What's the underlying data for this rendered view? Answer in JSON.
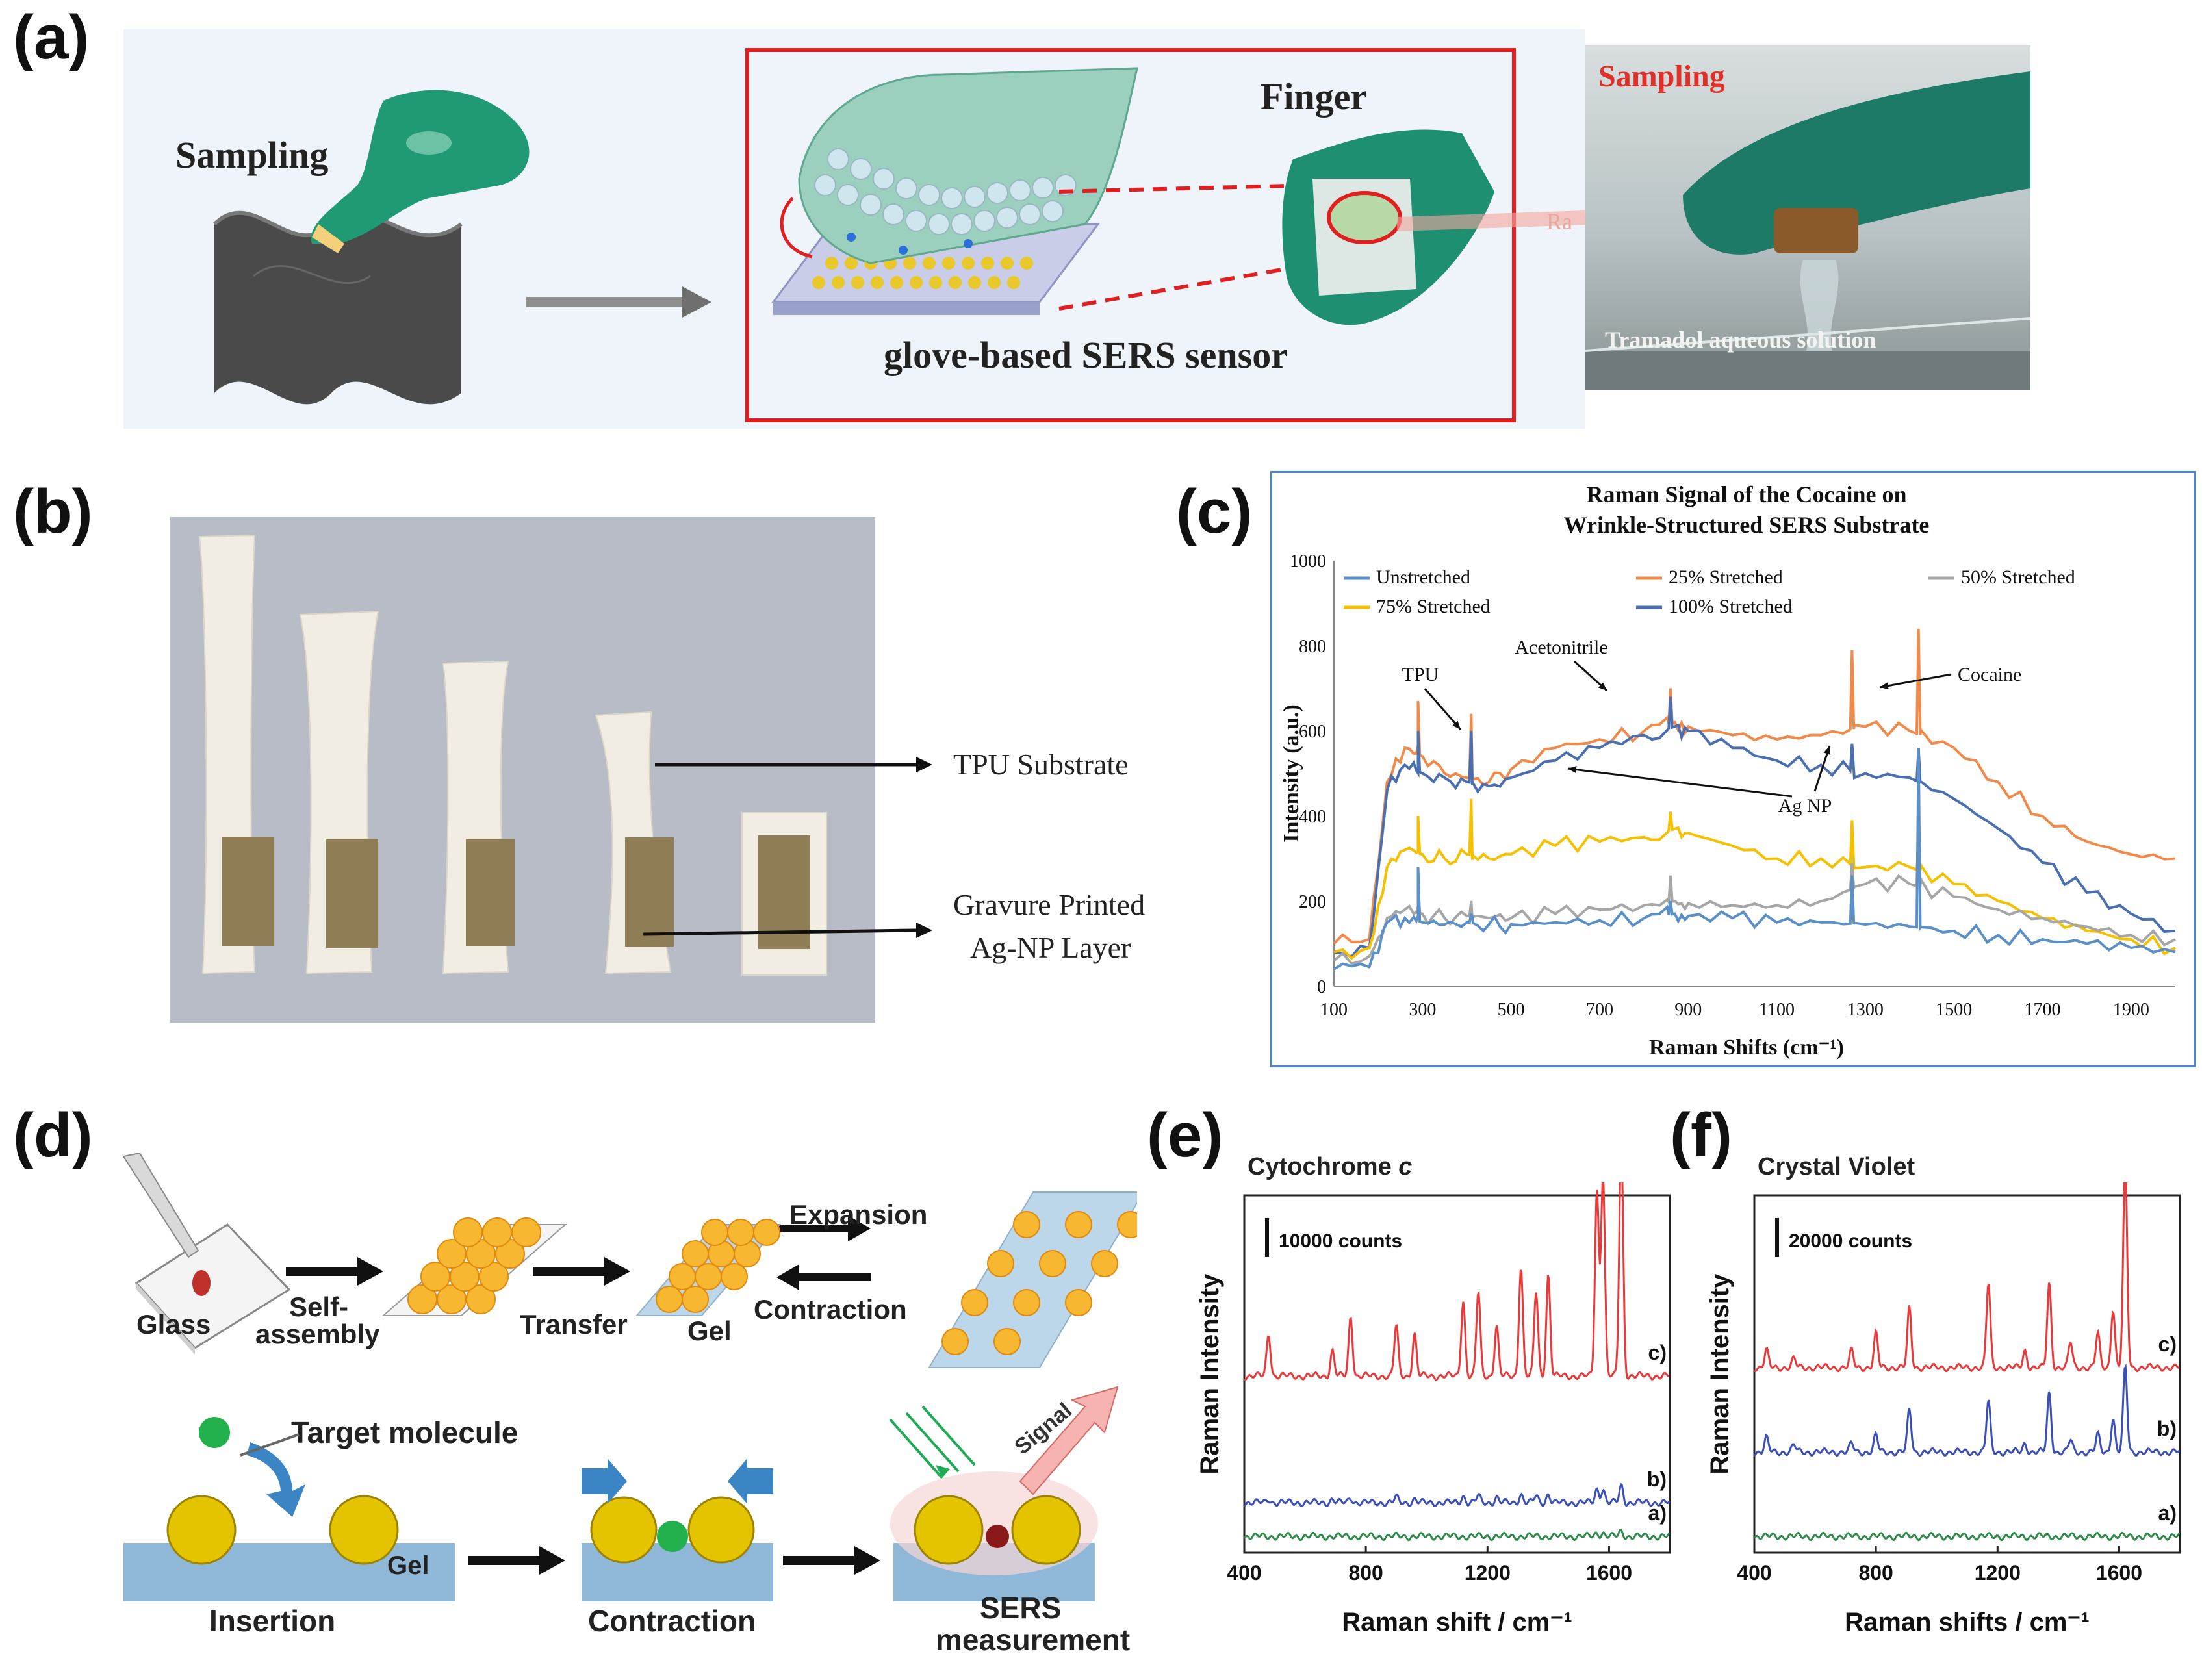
{
  "panels": {
    "a": "(a)",
    "b": "(b)",
    "c": "(c)",
    "d": "(d)",
    "e": "(e)",
    "f": "(f)"
  },
  "panel_a": {
    "sampling_label": "Sampling",
    "finger_label": "Finger",
    "sensor_label": "glove-based SERS sensor",
    "photo_sampling_label": "Sampling",
    "photo_caption": "Tramadol aqueous solution",
    "laser_text": "Ra"
  },
  "panel_b": {
    "tpu_label": "TPU Substrate",
    "agnp_label_line1": "Gravure Printed",
    "agnp_label_line2": "Ag-NP Layer"
  },
  "panel_d": {
    "glass": "Glass",
    "self_assembly_1": "Self-",
    "self_assembly_2": "assembly",
    "transfer": "Transfer",
    "gel": "Gel",
    "expansion": "Expansion",
    "contraction": "Contraction",
    "target_molecule": "Target molecule",
    "gel_small": "Gel",
    "insertion": "Insertion",
    "contraction_step": "Contraction",
    "sers_1": "SERS",
    "sers_2": "measurement",
    "signal": "Signal"
  },
  "colors": {
    "unstretched": "#5b8fc7",
    "s25": "#f08a4b",
    "s50": "#a6a6a6",
    "s75": "#f5c000",
    "s100": "#4a6fb0",
    "spectrum_c": "#e83a3a",
    "spectrum_b": "#3a4fb8",
    "spectrum_a": "#2e8b4a"
  },
  "chart_data": [
    {
      "id": "c",
      "type": "line",
      "title": "Raman Signal of the Cocaine on",
      "subtitle": "Wrinkle-Structured SERS Substrate",
      "xlabel": "Raman Shifts (cm⁻¹)",
      "ylabel": "Intensity (a.u.)",
      "xlim": [
        100,
        2000
      ],
      "ylim": [
        0,
        1000
      ],
      "xticks": [
        "100",
        "300",
        "500",
        "700",
        "900",
        "1100",
        "1300",
        "1500",
        "1700",
        "1900"
      ],
      "yticks": [
        "0",
        "200",
        "400",
        "600",
        "800",
        "1000"
      ],
      "legend": [
        "Unstretched",
        "25% Stretched",
        "50% Stretched",
        "75% Stretched",
        "100% Stretched"
      ],
      "annotations": [
        "TPU",
        "Acetonitrile",
        "Cocaine",
        "Ag NP"
      ],
      "x": [
        100,
        180,
        220,
        260,
        300,
        350,
        400,
        450,
        500,
        600,
        700,
        800,
        870,
        900,
        1000,
        1100,
        1200,
        1300,
        1400,
        1500,
        1600,
        1700,
        1800,
        1900,
        2000
      ],
      "series": [
        {
          "name": "Unstretched",
          "values": [
            40,
            45,
            150,
            160,
            150,
            145,
            150,
            145,
            145,
            150,
            155,
            160,
            170,
            165,
            160,
            150,
            150,
            145,
            140,
            130,
            120,
            110,
            100,
            90,
            80
          ]
        },
        {
          "name": "25% Stretched",
          "values": [
            100,
            110,
            480,
            560,
            540,
            500,
            490,
            480,
            510,
            560,
            580,
            600,
            620,
            610,
            590,
            580,
            590,
            610,
            600,
            560,
            480,
            400,
            340,
            310,
            300
          ]
        },
        {
          "name": "50% Stretched",
          "values": [
            60,
            70,
            160,
            180,
            170,
            160,
            165,
            160,
            160,
            170,
            180,
            190,
            200,
            195,
            190,
            190,
            200,
            240,
            240,
            210,
            180,
            160,
            140,
            120,
            110
          ]
        },
        {
          "name": "75% Stretched",
          "values": [
            80,
            90,
            280,
            320,
            310,
            300,
            310,
            300,
            310,
            330,
            340,
            350,
            370,
            360,
            330,
            300,
            300,
            280,
            280,
            240,
            200,
            160,
            130,
            110,
            90
          ]
        },
        {
          "name": "100% Stretched",
          "values": [
            80,
            90,
            460,
            520,
            500,
            490,
            480,
            470,
            490,
            530,
            560,
            590,
            610,
            600,
            560,
            530,
            520,
            500,
            490,
            440,
            370,
            290,
            220,
            170,
            130
          ]
        }
      ],
      "peaks": [
        {
          "x": 290,
          "values": [
            280,
            670,
            230,
            400,
            600
          ]
        },
        {
          "x": 410,
          "values": [
            170,
            640,
            200,
            440,
            600
          ]
        },
        {
          "x": 860,
          "values": [
            200,
            700,
            260,
            410,
            680
          ]
        },
        {
          "x": 1270,
          "values": [
            260,
            790,
            290,
            390,
            570
          ]
        },
        {
          "x": 1420,
          "values": [
            560,
            840,
            410,
            330,
            560
          ]
        }
      ]
    },
    {
      "id": "e",
      "type": "line",
      "title": "Cytochrome c",
      "title_main": "Cytochrome ",
      "title_italic": "c",
      "scale_bar": "10000 counts",
      "xlabel": "Raman shift / cm⁻¹",
      "ylabel": "Raman Intensity",
      "xlim": [
        400,
        1800
      ],
      "xticks": [
        "400",
        "800",
        "1200",
        "1600"
      ],
      "trace_labels": [
        "c)",
        "b)",
        "a)"
      ],
      "peaks_x": [
        480,
        690,
        750,
        900,
        960,
        1120,
        1170,
        1230,
        1310,
        1360,
        1400,
        1560,
        1580,
        1640
      ],
      "series": [
        {
          "name": "c)",
          "baseline": 9.5,
          "peaks": [
            2.5,
            1.5,
            3.5,
            3,
            2.5,
            4.5,
            5,
            3,
            6.5,
            5,
            6,
            11,
            12,
            14
          ]
        },
        {
          "name": "b)",
          "baseline": 2.0,
          "peaks": [
            0.2,
            0.2,
            0.3,
            0.3,
            0.2,
            0.4,
            0.4,
            0.3,
            0.5,
            0.4,
            0.5,
            0.8,
            0.8,
            1.0
          ]
        },
        {
          "name": "a)",
          "baseline": 0.0,
          "peaks": [
            0,
            0,
            0,
            0,
            0,
            0,
            0,
            0,
            0,
            0,
            0,
            0.2,
            0.2,
            0.3
          ]
        }
      ]
    },
    {
      "id": "f",
      "type": "line",
      "title": "Crystal Violet",
      "scale_bar": "20000 counts",
      "xlabel": "Raman shifts / cm⁻¹",
      "ylabel": "Raman Intensity",
      "xlim": [
        400,
        1800
      ],
      "xticks": [
        "400",
        "800",
        "1200",
        "1600"
      ],
      "trace_labels": [
        "c)",
        "b)",
        "a)"
      ],
      "peaks_x": [
        440,
        530,
        720,
        800,
        910,
        1170,
        1290,
        1370,
        1440,
        1530,
        1580,
        1620
      ],
      "series": [
        {
          "name": "c)",
          "baseline": 10.0,
          "peaks": [
            1,
            0.5,
            1,
            2,
            3.5,
            5,
            1,
            5,
            1.5,
            2,
            3.5,
            12
          ]
        },
        {
          "name": "b)",
          "baseline": 5.0,
          "peaks": [
            0.8,
            0.4,
            0.5,
            1,
            2.5,
            3,
            0.5,
            3.5,
            0.7,
            1,
            2,
            5
          ]
        },
        {
          "name": "a)",
          "baseline": 0.0,
          "peaks": [
            0,
            0,
            0,
            0,
            0,
            0,
            0,
            0,
            0,
            0,
            0,
            0
          ]
        }
      ]
    }
  ]
}
